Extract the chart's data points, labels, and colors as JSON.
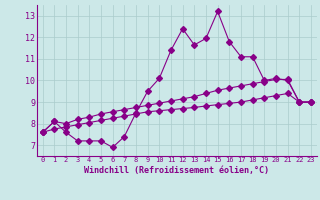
{
  "background_color": "#cce8e8",
  "line_color": "#880088",
  "grid_color": "#aacccc",
  "xlabel": "Windchill (Refroidissement éolien,°C)",
  "xlabel_color": "#880088",
  "ylim": [
    6.5,
    13.5
  ],
  "xlim": [
    -0.5,
    23.5
  ],
  "yticks": [
    7,
    8,
    9,
    10,
    11,
    12,
    13
  ],
  "xticks": [
    0,
    1,
    2,
    3,
    4,
    5,
    6,
    7,
    8,
    9,
    10,
    11,
    12,
    13,
    14,
    15,
    16,
    17,
    18,
    19,
    20,
    21,
    22,
    23
  ],
  "curve1_x": [
    0,
    1,
    2,
    3,
    4,
    5,
    6,
    7,
    8,
    9,
    10,
    11,
    12,
    13,
    14,
    15,
    16,
    17,
    18,
    19,
    20,
    21,
    22,
    23
  ],
  "curve1_y": [
    7.6,
    8.1,
    7.6,
    7.2,
    7.2,
    7.2,
    6.9,
    7.4,
    8.5,
    9.5,
    10.1,
    11.4,
    12.4,
    11.65,
    11.95,
    13.2,
    11.8,
    11.1,
    11.1,
    10.0,
    10.1,
    10.0,
    9.0,
    9.0
  ],
  "curve2_x": [
    0,
    1,
    2,
    3,
    4,
    5,
    6,
    7,
    8,
    9,
    10,
    11,
    12,
    13,
    14,
    15,
    16,
    17,
    18,
    19,
    20,
    21,
    22,
    23
  ],
  "curve2_y": [
    7.6,
    8.1,
    8.0,
    8.2,
    8.3,
    8.45,
    8.55,
    8.65,
    8.75,
    8.85,
    8.95,
    9.05,
    9.15,
    9.25,
    9.4,
    9.55,
    9.65,
    9.75,
    9.85,
    9.95,
    10.05,
    10.05,
    9.0,
    9.0
  ],
  "curve3_x": [
    0,
    1,
    2,
    3,
    4,
    5,
    6,
    7,
    8,
    9,
    10,
    11,
    12,
    13,
    14,
    15,
    16,
    17,
    18,
    19,
    20,
    21,
    22,
    23
  ],
  "curve3_y": [
    7.6,
    7.75,
    7.85,
    7.95,
    8.05,
    8.15,
    8.25,
    8.35,
    8.45,
    8.55,
    8.6,
    8.65,
    8.7,
    8.75,
    8.82,
    8.88,
    8.94,
    9.0,
    9.1,
    9.2,
    9.3,
    9.4,
    9.0,
    9.0
  ]
}
